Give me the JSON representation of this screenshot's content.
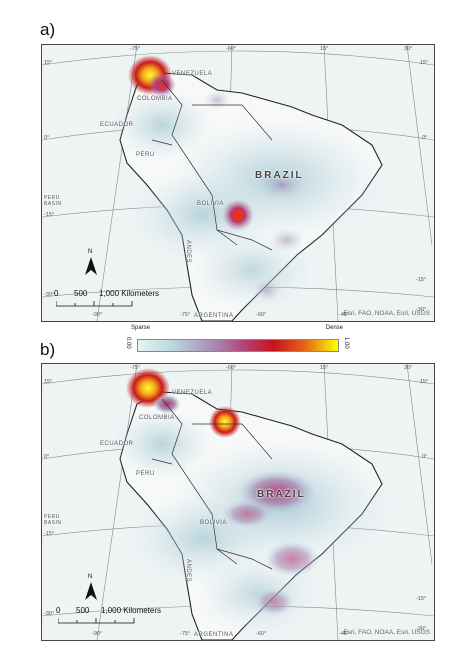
{
  "panels": [
    {
      "label": "a)",
      "countries": {
        "venezuela": "VENEZUELA",
        "colombia": "COLOMBIA",
        "ecuador": "ECUADOR",
        "peru": "PERU",
        "brazil": "BRAZIL",
        "bolivia": "BOLIVIA",
        "argentina": "ARGENTINA",
        "andes": "ANDES"
      },
      "ticks": {
        "top_75": "-75°",
        "top_60": "-60°",
        "top_15": "15°",
        "top_30": "30°",
        "left_15": "15°",
        "left_0": "0°",
        "left_15s": "-15°",
        "left_30": "-30°",
        "right_15": "15°",
        "right_0": "0°",
        "right_15s": "-15°",
        "right_30": "-30°",
        "bottom_90": "-90°",
        "bottom_75": "-75°",
        "bottom_60": "-60°",
        "bottom_45": "-45°"
      },
      "scale": {
        "zero": "0",
        "five_hundred": "500",
        "thousand": "1,000 Kilometers"
      },
      "north": "N",
      "attribution": "Esri, FAO, NOAA, Esri, USGS",
      "peru_basin": "PERU\nBASIN",
      "hotspots_level": "panel a: strong NW Venezuela/Colombia, Bolivia"
    },
    {
      "label": "b)",
      "countries": {
        "venezuela": "VENEZUELA",
        "colombia": "COLOMBIA",
        "ecuador": "ECUADOR",
        "peru": "PERU",
        "brazil": "BRAZIL",
        "bolivia": "BOLIVIA",
        "argentina": "ARGENTINA",
        "andes": "ANDES"
      },
      "ticks": {
        "top_75": "-75°",
        "top_60": "-60°",
        "top_15": "15°",
        "top_30": "30°",
        "left_15": "15°",
        "left_0": "0°",
        "left_15s": "-15°",
        "left_30": "-30°",
        "right_15": "15°",
        "right_0": "0°",
        "right_15s": "-15°",
        "right_30": "-30°",
        "bottom_90": "-90°",
        "bottom_75": "-75°",
        "bottom_60": "-60°",
        "bottom_45": "-45°"
      },
      "scale": {
        "zero": "0",
        "five_hundred": "500",
        "thousand": "1,000 Kilometers"
      },
      "north": "N",
      "attribution": "Esri, FAO, NOAA, Esri, USGS",
      "peru_basin": "PERU\nBASIN",
      "hotspots_level": "panel b: strong NW Venezuela, Guyana border, central Brazil"
    }
  ],
  "legend": {
    "sparse": "Sparse",
    "dense": "Dense",
    "min": "0.00",
    "max": "1.00",
    "colors": [
      "#e9f3f5",
      "#b9d5dd",
      "#a98bb3",
      "#b2477f",
      "#c5131b",
      "#e56a17",
      "#ffff00"
    ]
  }
}
